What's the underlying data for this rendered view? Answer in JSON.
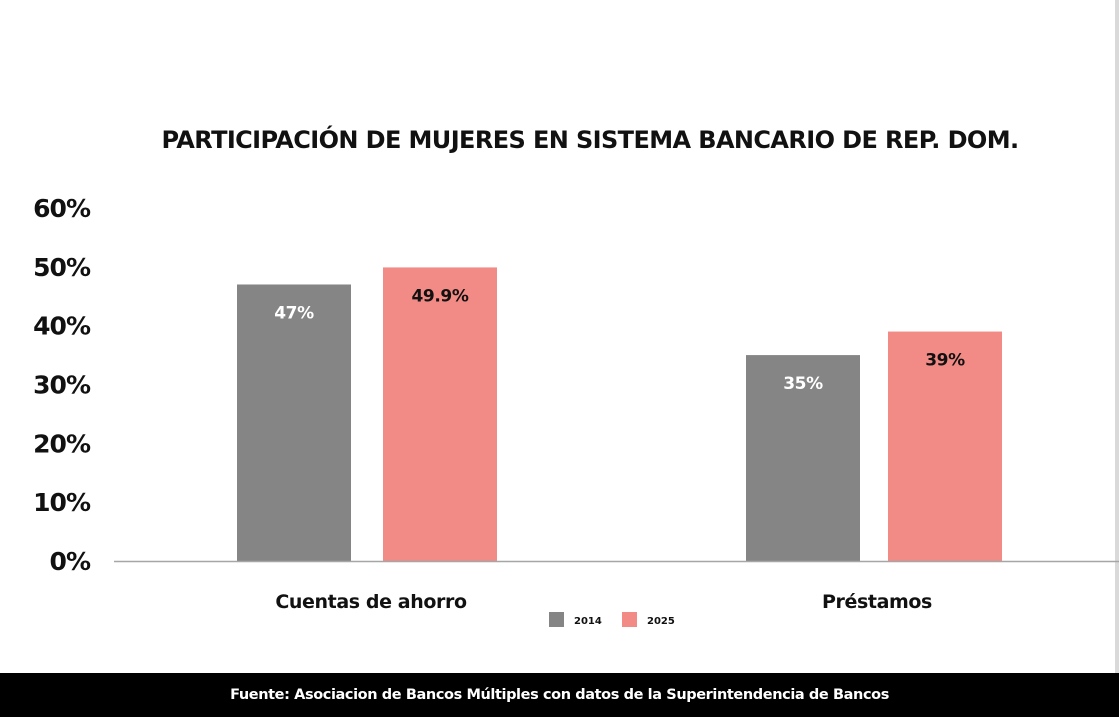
{
  "chart_data": {
    "type": "bar",
    "title": "PARTICIPACIÓN DE MUJERES EN SISTEMA BANCARIO DE REP. DOM.",
    "categories": [
      "Cuentas de ahorro",
      "Préstamos"
    ],
    "series": [
      {
        "name": "2014",
        "values": [
          47,
          35
        ],
        "labels": [
          "47%",
          "35%"
        ],
        "color": "#858585",
        "label_color": "#ffffff"
      },
      {
        "name": "2025",
        "values": [
          49.9,
          39
        ],
        "labels": [
          "49.9%",
          "39%"
        ],
        "color": "#f28a85",
        "label_color": "#111111"
      }
    ],
    "yticks": [
      "0%",
      "10%",
      "20%",
      "30%",
      "40%",
      "50%",
      "60%"
    ],
    "ylim": [
      0,
      60
    ],
    "xlabel": "",
    "ylabel": "",
    "grid": false,
    "legend_position": "bottom-center",
    "axis_color": "#a6a6a6"
  },
  "footer": {
    "source": "Fuente: Asociacion de Bancos Múltiples con datos de la Superintendencia de Bancos"
  }
}
